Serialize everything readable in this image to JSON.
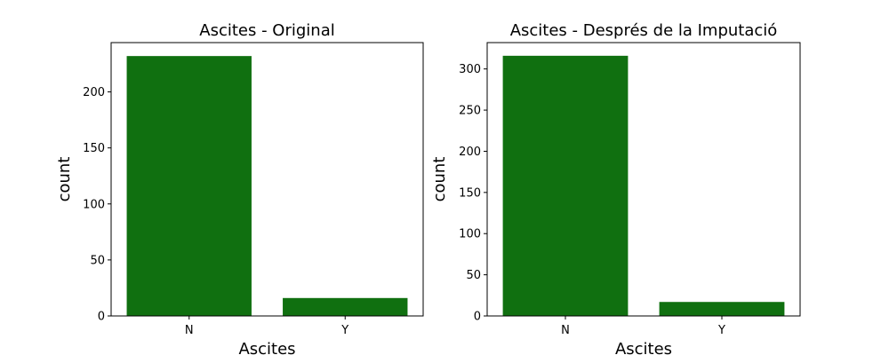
{
  "chart_data": [
    {
      "type": "bar",
      "title": "Ascites - Original",
      "xlabel": "Ascites",
      "ylabel": "count",
      "categories": [
        "N",
        "Y"
      ],
      "values": [
        232,
        16
      ],
      "ylim": [
        0,
        244
      ],
      "yticks": [
        0,
        50,
        100,
        150,
        200
      ],
      "color": "#107010",
      "grid": false
    },
    {
      "type": "bar",
      "title": "Ascites - Després de la Imputació",
      "xlabel": "Ascites",
      "ylabel": "count",
      "categories": [
        "N",
        "Y"
      ],
      "values": [
        316,
        17
      ],
      "ylim": [
        0,
        332
      ],
      "yticks": [
        0,
        50,
        100,
        150,
        200,
        250,
        300
      ],
      "color": "#107010",
      "grid": false
    }
  ]
}
